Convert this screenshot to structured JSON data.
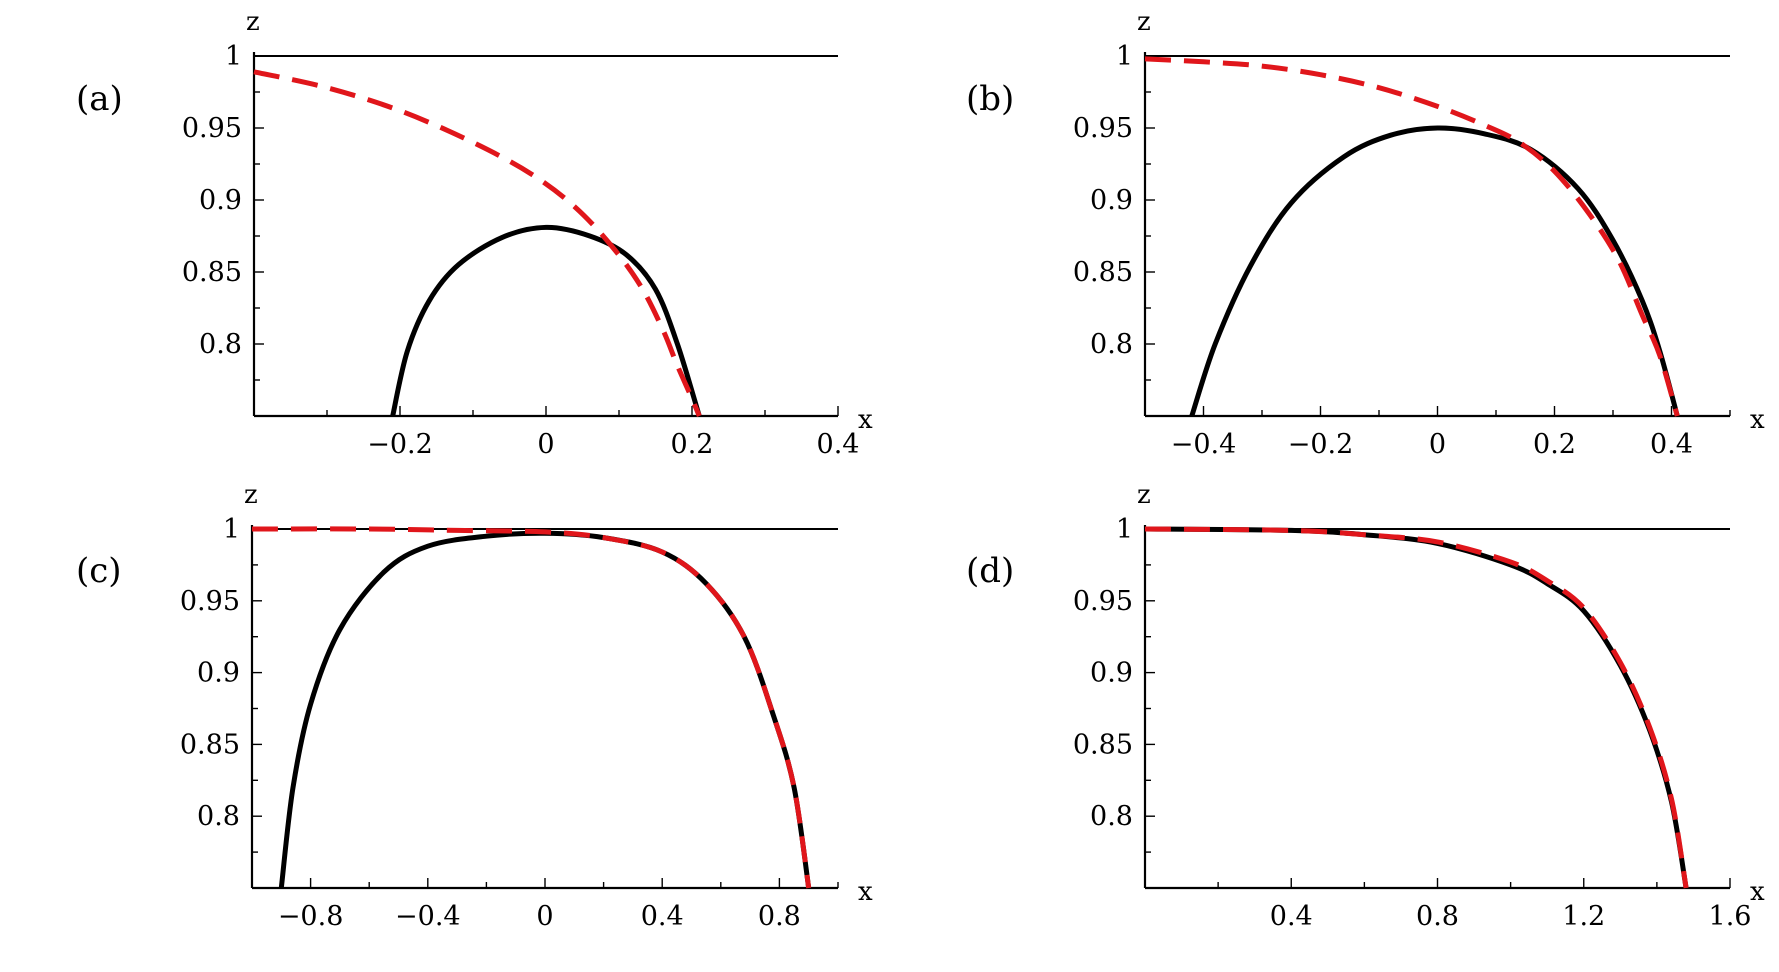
{
  "chart_data": [
    {
      "type": "line",
      "panel_label": "(a)",
      "xlabel": "x",
      "ylabel": "z",
      "xlim": [
        -0.4,
        0.4
      ],
      "ylim": [
        0.75,
        1.0
      ],
      "x_ticks": [
        {
          "value": -0.2,
          "label": "−0.2"
        },
        {
          "value": 0,
          "label": "0"
        },
        {
          "value": 0.2,
          "label": "0.2"
        },
        {
          "value": 0.4,
          "label": "0.4"
        }
      ],
      "y_ticks": [
        {
          "value": 0.8,
          "label": "0.8"
        },
        {
          "value": 0.85,
          "label": "0.85"
        },
        {
          "value": 0.9,
          "label": "0.9"
        },
        {
          "value": 0.95,
          "label": "0.95"
        },
        {
          "value": 1.0,
          "label": "1"
        }
      ],
      "reference_line_y": 1.0,
      "series": [
        {
          "style": "solid",
          "color": "#000000",
          "points": [
            [
              -0.21,
              0.75
            ],
            [
              -0.19,
              0.795
            ],
            [
              -0.16,
              0.83
            ],
            [
              -0.12,
              0.855
            ],
            [
              -0.06,
              0.874
            ],
            [
              0.0,
              0.881
            ],
            [
              0.06,
              0.875
            ],
            [
              0.11,
              0.862
            ],
            [
              0.15,
              0.838
            ],
            [
              0.18,
              0.8
            ],
            [
              0.21,
              0.75
            ]
          ]
        },
        {
          "style": "dashed",
          "color": "#e0161b",
          "points": [
            [
              -0.4,
              0.989
            ],
            [
              -0.3,
              0.978
            ],
            [
              -0.2,
              0.962
            ],
            [
              -0.1,
              0.94
            ],
            [
              -0.02,
              0.918
            ],
            [
              0.04,
              0.895
            ],
            [
              0.09,
              0.868
            ],
            [
              0.13,
              0.84
            ],
            [
              0.16,
              0.81
            ],
            [
              0.18,
              0.785
            ],
            [
              0.2,
              0.762
            ],
            [
              0.21,
              0.75
            ]
          ]
        }
      ]
    },
    {
      "type": "line",
      "panel_label": "(b)",
      "xlabel": "x",
      "ylabel": "z",
      "xlim": [
        -0.5,
        0.5
      ],
      "ylim": [
        0.75,
        1.0
      ],
      "x_ticks": [
        {
          "value": -0.4,
          "label": "−0.4"
        },
        {
          "value": -0.2,
          "label": "−0.2"
        },
        {
          "value": 0,
          "label": "0"
        },
        {
          "value": 0.2,
          "label": "0.2"
        },
        {
          "value": 0.4,
          "label": "0.4"
        }
      ],
      "y_ticks": [
        {
          "value": 0.8,
          "label": "0.8"
        },
        {
          "value": 0.85,
          "label": "0.85"
        },
        {
          "value": 0.9,
          "label": "0.9"
        },
        {
          "value": 0.95,
          "label": "0.95"
        },
        {
          "value": 1.0,
          "label": "1"
        }
      ],
      "reference_line_y": 1.0,
      "series": [
        {
          "style": "solid",
          "color": "#000000",
          "points": [
            [
              -0.42,
              0.75
            ],
            [
              -0.38,
              0.8
            ],
            [
              -0.32,
              0.854
            ],
            [
              -0.25,
              0.898
            ],
            [
              -0.16,
              0.93
            ],
            [
              -0.08,
              0.945
            ],
            [
              0.0,
              0.95
            ],
            [
              0.08,
              0.946
            ],
            [
              0.16,
              0.935
            ],
            [
              0.24,
              0.908
            ],
            [
              0.3,
              0.872
            ],
            [
              0.35,
              0.83
            ],
            [
              0.38,
              0.795
            ],
            [
              0.41,
              0.75
            ]
          ]
        },
        {
          "style": "dashed",
          "color": "#e0161b",
          "points": [
            [
              -0.5,
              0.998
            ],
            [
              -0.4,
              0.996
            ],
            [
              -0.3,
              0.993
            ],
            [
              -0.2,
              0.987
            ],
            [
              -0.1,
              0.978
            ],
            [
              0.0,
              0.965
            ],
            [
              0.08,
              0.952
            ],
            [
              0.14,
              0.94
            ],
            [
              0.2,
              0.92
            ],
            [
              0.26,
              0.89
            ],
            [
              0.31,
              0.858
            ],
            [
              0.35,
              0.82
            ],
            [
              0.38,
              0.792
            ],
            [
              0.41,
              0.75
            ]
          ]
        }
      ]
    },
    {
      "type": "line",
      "panel_label": "(c)",
      "xlabel": "x",
      "ylabel": "z",
      "xlim": [
        -1.0,
        1.0
      ],
      "ylim": [
        0.75,
        1.0
      ],
      "x_ticks": [
        {
          "value": -0.8,
          "label": "−0.8"
        },
        {
          "value": -0.4,
          "label": "−0.4"
        },
        {
          "value": 0,
          "label": "0"
        },
        {
          "value": 0.4,
          "label": "0.4"
        },
        {
          "value": 0.8,
          "label": "0.8"
        }
      ],
      "y_ticks": [
        {
          "value": 0.8,
          "label": "0.8"
        },
        {
          "value": 0.85,
          "label": "0.85"
        },
        {
          "value": 0.9,
          "label": "0.9"
        },
        {
          "value": 0.95,
          "label": "0.95"
        },
        {
          "value": 1.0,
          "label": "1"
        }
      ],
      "reference_line_y": 1.0,
      "series": [
        {
          "style": "solid",
          "color": "#000000",
          "points": [
            [
              -0.9,
              0.75
            ],
            [
              -0.86,
              0.82
            ],
            [
              -0.8,
              0.878
            ],
            [
              -0.7,
              0.93
            ],
            [
              -0.55,
              0.97
            ],
            [
              -0.4,
              0.988
            ],
            [
              -0.2,
              0.995
            ],
            [
              0.0,
              0.997
            ],
            [
              0.2,
              0.994
            ],
            [
              0.4,
              0.984
            ],
            [
              0.55,
              0.962
            ],
            [
              0.68,
              0.925
            ],
            [
              0.78,
              0.87
            ],
            [
              0.85,
              0.82
            ],
            [
              0.9,
              0.75
            ]
          ]
        },
        {
          "style": "dashed",
          "color": "#e0161b",
          "points": [
            [
              -1.0,
              1.0
            ],
            [
              -0.6,
              1.0
            ],
            [
              -0.3,
              0.999
            ],
            [
              0.0,
              0.998
            ],
            [
              0.2,
              0.994
            ],
            [
              0.4,
              0.984
            ],
            [
              0.55,
              0.962
            ],
            [
              0.68,
              0.925
            ],
            [
              0.78,
              0.87
            ],
            [
              0.85,
              0.82
            ],
            [
              0.9,
              0.75
            ]
          ]
        }
      ]
    },
    {
      "type": "line",
      "panel_label": "(d)",
      "xlabel": "x",
      "ylabel": "z",
      "xlim": [
        0.0,
        1.6
      ],
      "ylim": [
        0.75,
        1.0
      ],
      "x_ticks": [
        {
          "value": 0.4,
          "label": "0.4"
        },
        {
          "value": 0.8,
          "label": "0.8"
        },
        {
          "value": 1.2,
          "label": "1.2"
        },
        {
          "value": 1.6,
          "label": "1.6"
        }
      ],
      "y_ticks": [
        {
          "value": 0.8,
          "label": "0.8"
        },
        {
          "value": 0.85,
          "label": "0.85"
        },
        {
          "value": 0.9,
          "label": "0.9"
        },
        {
          "value": 0.95,
          "label": "0.95"
        },
        {
          "value": 1.0,
          "label": "1"
        }
      ],
      "reference_line_y": 1.0,
      "series": [
        {
          "style": "solid",
          "color": "#000000",
          "points": [
            [
              0.0,
              1.0
            ],
            [
              0.4,
              0.999
            ],
            [
              0.6,
              0.996
            ],
            [
              0.8,
              0.99
            ],
            [
              1.0,
              0.975
            ],
            [
              1.1,
              0.962
            ],
            [
              1.2,
              0.943
            ],
            [
              1.3,
              0.905
            ],
            [
              1.38,
              0.86
            ],
            [
              1.44,
              0.81
            ],
            [
              1.48,
              0.75
            ]
          ]
        },
        {
          "style": "dashed",
          "color": "#e0161b",
          "points": [
            [
              0.0,
              1.0
            ],
            [
              0.4,
              0.999
            ],
            [
              0.6,
              0.996
            ],
            [
              0.8,
              0.991
            ],
            [
              1.0,
              0.977
            ],
            [
              1.1,
              0.964
            ],
            [
              1.2,
              0.945
            ],
            [
              1.3,
              0.907
            ],
            [
              1.38,
              0.862
            ],
            [
              1.44,
              0.812
            ],
            [
              1.48,
              0.75
            ]
          ]
        }
      ]
    }
  ]
}
